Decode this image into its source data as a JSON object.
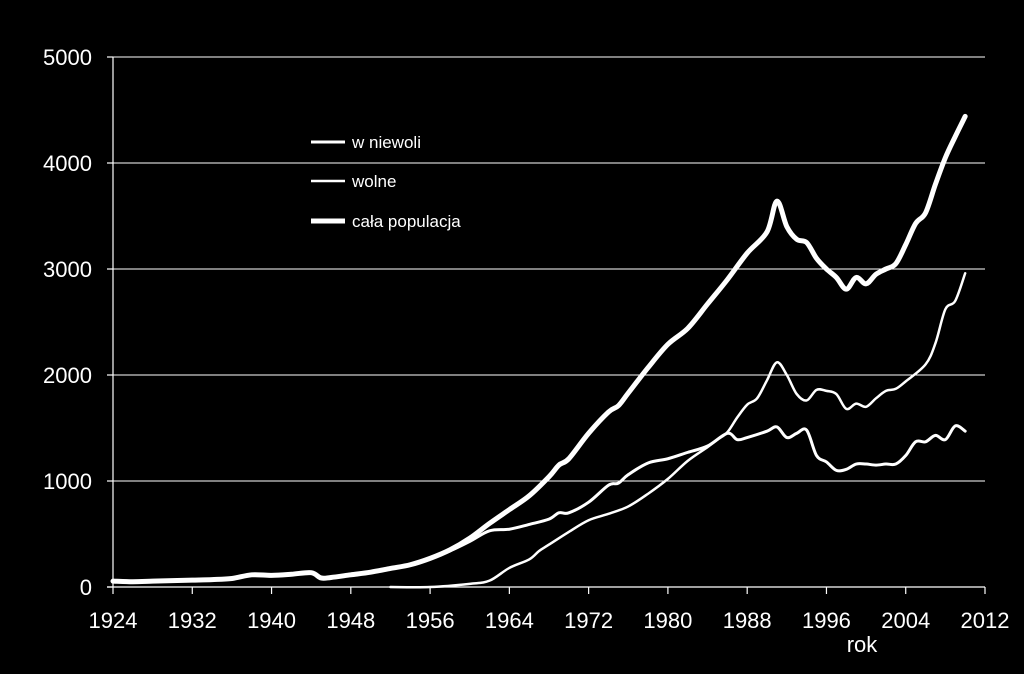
{
  "chart_data": {
    "type": "line",
    "xlabel": "rok",
    "ylabel": "",
    "xlim": [
      1924,
      2012
    ],
    "ylim": [
      0,
      5000
    ],
    "x_ticks": [
      "1924",
      "1932",
      "1940",
      "1948",
      "1956",
      "1964",
      "1972",
      "1980",
      "1988",
      "1996",
      "2004",
      "2012"
    ],
    "y_ticks": [
      "0",
      "1000",
      "2000",
      "3000",
      "4000",
      "5000"
    ],
    "grid": "horizontal",
    "legend_position": "top-left",
    "colors": {
      "background": "#000000",
      "line": "#ffffff",
      "grid": "#ffffff"
    },
    "series": [
      {
        "name": "w niewoli",
        "x": [
          1924,
          1926,
          1928,
          1930,
          1932,
          1934,
          1936,
          1938,
          1940,
          1942,
          1944,
          1945,
          1946,
          1948,
          1950,
          1952,
          1954,
          1956,
          1958,
          1960,
          1962,
          1964,
          1966,
          1968,
          1969,
          1970,
          1972,
          1974,
          1975,
          1976,
          1978,
          1980,
          1982,
          1984,
          1986,
          1987,
          1988,
          1990,
          1991,
          1992,
          1993,
          1994,
          1995,
          1996,
          1997,
          1998,
          1999,
          2000,
          2001,
          2002,
          2003,
          2004,
          2005,
          2006,
          2007,
          2008,
          2009,
          2010
        ],
        "values": [
          55,
          50,
          55,
          60,
          65,
          70,
          80,
          115,
          110,
          120,
          135,
          85,
          90,
          115,
          140,
          175,
          210,
          270,
          340,
          430,
          530,
          545,
          590,
          640,
          700,
          700,
          800,
          960,
          980,
          1060,
          1170,
          1210,
          1270,
          1330,
          1450,
          1390,
          1410,
          1470,
          1510,
          1410,
          1450,
          1480,
          1240,
          1180,
          1100,
          1110,
          1160,
          1160,
          1150,
          1160,
          1160,
          1240,
          1370,
          1370,
          1430,
          1390,
          1520,
          1470
        ]
      },
      {
        "name": "wolne",
        "x": [
          1952,
          1956,
          1960,
          1962,
          1964,
          1966,
          1967,
          1968,
          1970,
          1972,
          1974,
          1976,
          1978,
          1980,
          1982,
          1984,
          1985,
          1986,
          1987,
          1988,
          1989,
          1990,
          1991,
          1992,
          1993,
          1994,
          1995,
          1996,
          1997,
          1998,
          1999,
          2000,
          2001,
          2002,
          2003,
          2004,
          2006,
          2007,
          2008,
          2009,
          2010
        ],
        "values": [
          0,
          0,
          30,
          60,
          180,
          260,
          340,
          400,
          520,
          630,
          690,
          760,
          880,
          1020,
          1190,
          1320,
          1390,
          1460,
          1600,
          1720,
          1780,
          1950,
          2120,
          2000,
          1820,
          1760,
          1860,
          1850,
          1820,
          1680,
          1730,
          1700,
          1780,
          1850,
          1870,
          1940,
          2100,
          2300,
          2620,
          2700,
          2960
        ]
      },
      {
        "name": "cała populacja",
        "x": [
          1924,
          1926,
          1928,
          1930,
          1932,
          1934,
          1936,
          1938,
          1940,
          1942,
          1944,
          1945,
          1946,
          1948,
          1950,
          1952,
          1954,
          1956,
          1958,
          1960,
          1962,
          1964,
          1966,
          1968,
          1969,
          1970,
          1972,
          1974,
          1975,
          1976,
          1978,
          1980,
          1982,
          1984,
          1986,
          1988,
          1990,
          1991,
          1992,
          1993,
          1994,
          1995,
          1996,
          1997,
          1998,
          1999,
          2000,
          2001,
          2002,
          2003,
          2004,
          2005,
          2006,
          2007,
          2008,
          2009,
          2010
        ],
        "values": [
          55,
          50,
          55,
          60,
          65,
          70,
          80,
          115,
          110,
          120,
          135,
          85,
          90,
          115,
          140,
          175,
          210,
          270,
          350,
          460,
          600,
          730,
          860,
          1040,
          1150,
          1210,
          1450,
          1650,
          1710,
          1830,
          2070,
          2290,
          2440,
          2670,
          2900,
          3150,
          3350,
          3640,
          3400,
          3280,
          3250,
          3100,
          3000,
          2920,
          2810,
          2920,
          2860,
          2950,
          3000,
          3050,
          3230,
          3430,
          3530,
          3800,
          4050,
          4250,
          4440
        ]
      }
    ]
  }
}
